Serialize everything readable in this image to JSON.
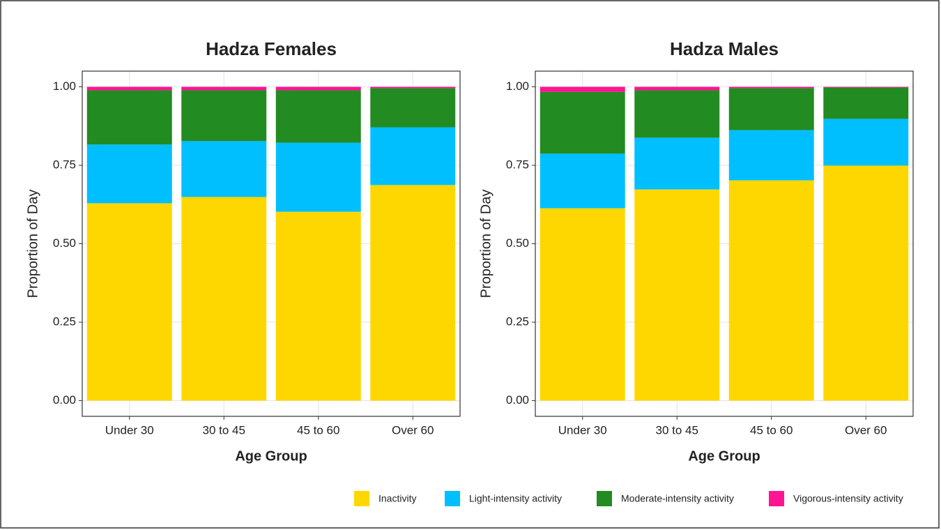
{
  "chart_data": [
    {
      "type": "stacked-bar",
      "title": "Hadza Females",
      "x_label": "Age Group",
      "y_label": "Proportion of Day",
      "categories": [
        "Under 30",
        "30 to 45",
        "45 to 60",
        "Over 60"
      ],
      "series": [
        {
          "name": "Inactivity",
          "color": "#ffd700",
          "values": [
            0.629,
            0.649,
            0.602,
            0.687
          ]
        },
        {
          "name": "Light-intensity activity",
          "color": "#00bfff",
          "values": [
            0.187,
            0.178,
            0.22,
            0.184
          ]
        },
        {
          "name": "Moderate-intensity activity",
          "color": "#228b22",
          "values": [
            0.173,
            0.162,
            0.167,
            0.125
          ]
        },
        {
          "name": "Vigorous-intensity activity",
          "color": "#ff1493",
          "values": [
            0.011,
            0.011,
            0.011,
            0.004
          ]
        }
      ],
      "ylim": [
        -0.05,
        1.05
      ],
      "yticks": [
        {
          "value": 0,
          "label": "0.00"
        },
        {
          "value": 0.25,
          "label": "0.25"
        },
        {
          "value": 0.5,
          "label": "0.50"
        },
        {
          "value": 0.75,
          "label": "0.75"
        },
        {
          "value": 1,
          "label": "1.00"
        }
      ],
      "grid": true,
      "legend": "bottom"
    },
    {
      "type": "stacked-bar",
      "title": "Hadza Males",
      "x_label": "Age Group",
      "y_label": "Proportion of Day",
      "categories": [
        "Under 30",
        "30 to 45",
        "45 to 60",
        "Over 60"
      ],
      "series": [
        {
          "color": "#ffd700",
          "values": [
            0.613,
            0.673,
            0.702,
            0.749
          ]
        },
        {
          "color": "#00bfff",
          "values": [
            0.174,
            0.165,
            0.16,
            0.149
          ]
        },
        {
          "color": "#228b22",
          "values": [
            0.197,
            0.151,
            0.134,
            0.1
          ]
        },
        {
          "color": "#ff1493",
          "values": [
            0.016,
            0.011,
            0.004,
            0.002
          ]
        }
      ],
      "ylim": [
        -0.05,
        1.05
      ],
      "yticks": [
        {
          "value": 0,
          "label": "0.00"
        },
        {
          "value": 0.25,
          "label": "0.25"
        },
        {
          "value": 0.5,
          "label": "0.50"
        },
        {
          "value": 0.75,
          "label": "0.75"
        },
        {
          "value": 1,
          "label": "1.00"
        }
      ],
      "grid": true
    }
  ]
}
